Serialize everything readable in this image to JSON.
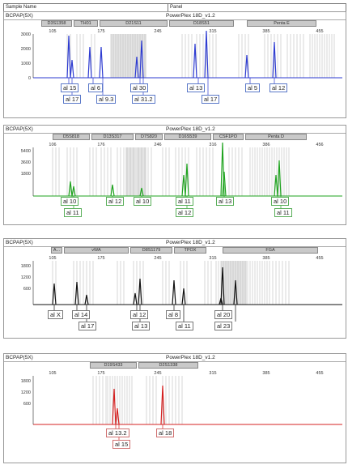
{
  "header": {
    "sample_name_label": "Sample Name",
    "panel_label": "Panel"
  },
  "panels": [
    {
      "id": "p1",
      "dye_label": "BCPAP(5X)",
      "kit": "PowerPlex 18D_v1.2",
      "color": "#2d3bd1",
      "allele_class": "a-blue",
      "loci": [
        "D3S1358",
        "TH01",
        "D21S11",
        "D18S51",
        "Penta E"
      ],
      "x_ticks": [
        "105",
        "175",
        "245",
        "315",
        "385",
        "455"
      ],
      "y_ticks": [
        "3000",
        "2000",
        "1000",
        "0"
      ],
      "alleles": [
        {
          "row1": "al 15",
          "row2": "al 17"
        },
        {
          "row1": "al 6",
          "row2": "al 9.3"
        },
        {
          "row1": "al 30",
          "row2": "al 31.2"
        },
        {
          "row1": "al 13",
          "row2": "al 17"
        },
        {
          "row1": "al 5",
          "row2": ""
        },
        {
          "row1": "al 12",
          "row2": ""
        }
      ]
    },
    {
      "id": "p2",
      "dye_label": "BCPAP(5X)",
      "kit": "PowerPlex 18D_v1.2",
      "color": "#1fa31f",
      "allele_class": "a-green",
      "loci": [
        "D5S818",
        "D13S317",
        "D7S820",
        "D16S539",
        "CSF1PO",
        "Penta D"
      ],
      "x_ticks": [
        "106",
        "176",
        "246",
        "316",
        "386",
        "456"
      ],
      "y_ticks": [
        "5400",
        "3600",
        "1800"
      ],
      "alleles": [
        {
          "row1": "al 10",
          "row2": "al 11"
        },
        {
          "row1": "al 12",
          "row2": ""
        },
        {
          "row1": "al 10",
          "row2": ""
        },
        {
          "row1": "al 11",
          "row2": "al 12"
        },
        {
          "row1": "al 13",
          "row2": ""
        },
        {
          "row1": "al 10",
          "row2": "al 11"
        }
      ]
    },
    {
      "id": "p3",
      "dye_label": "BCPAP(5X)",
      "kit": "PowerPlex 18D_v1.2",
      "color": "#111111",
      "allele_class": "a-black",
      "loci": [
        "A...",
        "vWA",
        "D8S1179",
        "TPOX",
        "FGA"
      ],
      "x_ticks": [
        "105",
        "175",
        "245",
        "315",
        "385",
        "455"
      ],
      "y_ticks": [
        "1800",
        "1200",
        "600"
      ],
      "alleles": [
        {
          "row1": "al X",
          "row2": ""
        },
        {
          "row1": "al 14",
          "row2": "al 17"
        },
        {
          "row1": "al 12",
          "row2": "al 13"
        },
        {
          "row1": "al 8",
          "row2": "al 11"
        },
        {
          "row1": "al 20",
          "row2": "al 23"
        }
      ]
    },
    {
      "id": "p4",
      "dye_label": "BCPAP(5X)",
      "kit": "PowerPlex 18D_v1.2",
      "color": "#d42020",
      "allele_class": "a-red",
      "loci": [
        "D19S433",
        "D2S1338"
      ],
      "x_ticks": [
        "105",
        "175",
        "245",
        "315",
        "385",
        "455"
      ],
      "y_ticks": [
        "1800",
        "1200",
        "600"
      ],
      "alleles": [
        {
          "row1": "al 13.2",
          "row2": "al 15"
        },
        {
          "row1": "al 18",
          "row2": ""
        }
      ]
    }
  ]
}
